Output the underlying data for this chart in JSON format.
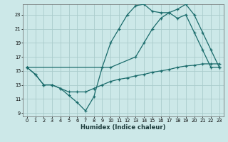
{
  "xlabel": "Humidex (Indice chaleur)",
  "bg_color": "#cce8e8",
  "grid_color": "#aacccc",
  "line_color": "#1a6b6b",
  "xlim": [
    -0.5,
    23.5
  ],
  "ylim": [
    8.5,
    24.5
  ],
  "xtick_labels": [
    "0",
    "1",
    "2",
    "3",
    "4",
    "5",
    "6",
    "7",
    "8",
    "9",
    "10",
    "11",
    "12",
    "13",
    "14",
    "15",
    "16",
    "17",
    "18",
    "19",
    "20",
    "21",
    "22",
    "23"
  ],
  "xtick_vals": [
    0,
    1,
    2,
    3,
    4,
    5,
    6,
    7,
    8,
    9,
    10,
    11,
    12,
    13,
    14,
    15,
    16,
    17,
    18,
    19,
    20,
    21,
    22,
    23
  ],
  "ytick_vals": [
    9,
    11,
    13,
    15,
    17,
    19,
    21,
    23
  ],
  "series1_x": [
    0,
    1,
    2,
    3,
    4,
    5,
    6,
    7,
    8,
    9,
    10,
    11,
    12,
    13,
    14,
    15,
    16,
    17,
    18,
    19,
    20,
    21,
    22,
    23
  ],
  "series1_y": [
    15.5,
    14.5,
    13.0,
    13.0,
    12.5,
    11.5,
    10.5,
    9.3,
    11.3,
    15.5,
    19.0,
    21.0,
    23.0,
    24.3,
    24.5,
    23.5,
    23.3,
    23.3,
    22.5,
    23.0,
    20.5,
    18.0,
    15.5,
    15.5
  ],
  "series2_x": [
    0,
    10,
    13,
    14,
    15,
    16,
    17,
    18,
    19,
    20,
    21,
    22,
    23
  ],
  "series2_y": [
    15.5,
    15.5,
    17.0,
    19.0,
    21.0,
    22.5,
    23.3,
    23.8,
    24.5,
    23.0,
    20.5,
    18.0,
    15.5
  ],
  "series3_x": [
    0,
    1,
    2,
    3,
    4,
    5,
    6,
    7,
    8,
    9,
    10,
    11,
    12,
    13,
    14,
    15,
    16,
    17,
    18,
    19,
    20,
    21,
    22,
    23
  ],
  "series3_y": [
    15.5,
    14.5,
    13.0,
    13.0,
    12.5,
    12.0,
    12.0,
    12.0,
    12.5,
    13.0,
    13.5,
    13.8,
    14.0,
    14.3,
    14.5,
    14.8,
    15.0,
    15.2,
    15.5,
    15.7,
    15.8,
    16.0,
    16.0,
    16.0
  ]
}
